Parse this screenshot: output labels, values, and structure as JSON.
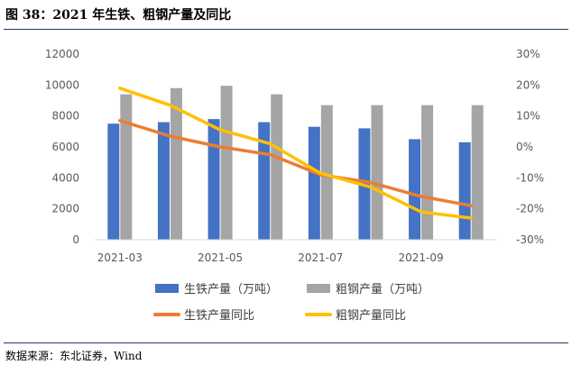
{
  "figure": {
    "title": "图 38：2021 年生铁、粗钢产量及同比",
    "source": "数据来源：东北证券，Wind"
  },
  "chart_data": {
    "type": "bar",
    "categories": [
      "2021-03",
      "2021-04",
      "2021-05",
      "2021-06",
      "2021-07",
      "2021-08",
      "2021-09",
      "2021-10"
    ],
    "x_tick_labels": [
      "2021-03",
      "2021-05",
      "2021-07",
      "2021-09"
    ],
    "y_left": {
      "ylim": [
        0,
        12000
      ],
      "ticks": [
        0,
        2000,
        4000,
        6000,
        8000,
        10000,
        12000
      ]
    },
    "y_right": {
      "ylim": [
        -30,
        30
      ],
      "ticks": [
        "30%",
        "20%",
        "10%",
        "0%",
        "-10%",
        "-20%",
        "-30%"
      ]
    },
    "series": [
      {
        "name": "生铁产量（万吨）",
        "type": "bar",
        "axis": "left",
        "color": "#4472c4",
        "values": [
          7500,
          7600,
          7800,
          7600,
          7300,
          7200,
          6500,
          6300
        ]
      },
      {
        "name": "粗钢产量（万吨）",
        "type": "bar",
        "axis": "left",
        "color": "#a5a5a5",
        "values": [
          9400,
          9800,
          9950,
          9400,
          8700,
          8700,
          8700,
          8700
        ]
      },
      {
        "name": "生铁产量同比",
        "type": "line",
        "axis": "right",
        "color": "#ed7d31",
        "values": [
          8.5,
          3.5,
          0,
          -2.5,
          -9,
          -11.5,
          -16,
          -19
        ]
      },
      {
        "name": "粗钢产量同比",
        "type": "line",
        "axis": "right",
        "color": "#ffc000",
        "values": [
          19,
          13.5,
          5.5,
          1,
          -8.5,
          -13,
          -21,
          -23
        ]
      }
    ],
    "grid": false,
    "legend": "bottom"
  }
}
